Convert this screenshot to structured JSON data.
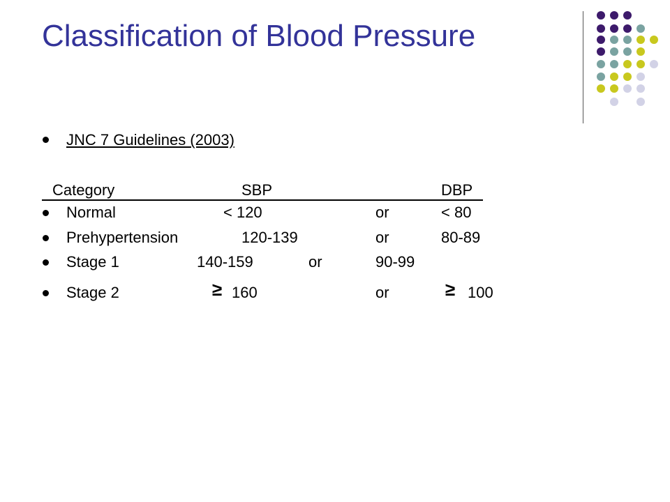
{
  "title": "Classification of Blood Pressure",
  "subtitle": "JNC 7 Guidelines (2003)",
  "columns": {
    "category": "Category",
    "sbp": "SBP",
    "dbp": "DBP"
  },
  "rows": [
    {
      "category": "Normal",
      "sbp": "< 120",
      "op": "or",
      "dbp": "< 80"
    },
    {
      "category": "Prehypertension",
      "sbp": "120-139",
      "op": "or",
      "dbp": "80-89"
    },
    {
      "category": "Stage 1",
      "sbp": "140-159",
      "op": "or",
      "dbp": "90-99"
    },
    {
      "category": "Stage 2",
      "sbp_symbol": "≥",
      "sbp": "160",
      "op": "or",
      "dbp_symbol": "≥",
      "dbp": "100"
    }
  ],
  "colors": {
    "title": "#333399",
    "dot_purple": "#3d1a6b",
    "dot_teal": "#7aa3a1",
    "dot_olive": "#c8c81e",
    "dot_lavender": "#d2d2e6"
  }
}
